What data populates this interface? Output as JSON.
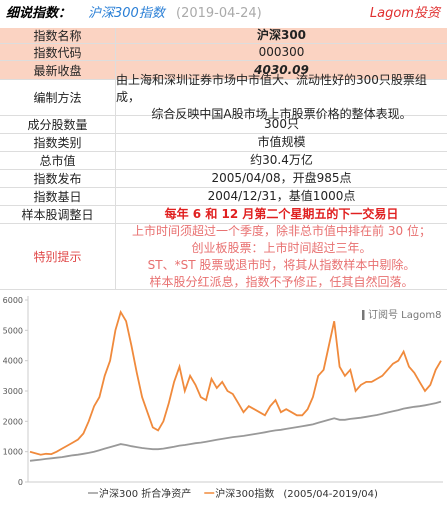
{
  "header": {
    "title": "细说指数：",
    "index": "沪深300指数",
    "date": "(2019-04-24)",
    "brand": "Lagom投资"
  },
  "table": {
    "rows": [
      [
        "指数名称",
        "沪深300"
      ],
      [
        "指数代码",
        "000300"
      ],
      [
        "最新收盘",
        "4030.09"
      ],
      [
        "编制方法",
        [
          "由上海和深圳证券市场中市值大、流动性好的300只股票组成，",
          "综合反映中国A股市场上市股票价格的整体表现。"
        ]
      ],
      [
        "成分股数量",
        "300只"
      ],
      [
        "指数类别",
        "市值规模"
      ],
      [
        "总市值",
        "约30.4万亿"
      ],
      [
        "指数发布",
        "2005/04/08，开盘985点"
      ],
      [
        "指数基日",
        "2004/12/31，基值1000点"
      ],
      [
        "样本股调整日",
        "每年 6 和 12 月第二个星期五的下一交易日"
      ],
      [
        "特别提示",
        [
          "上市时间须超过一个季度，除非总市值中排在前 30 位；",
          "创业板股票：上市时间超过三年。",
          "ST、*ST 股票或退市时，将其从指数样本中剔除。",
          "样本股分红派息，指数不予修正，任其自然回落。"
        ]
      ]
    ]
  },
  "chart_data": {
    "type": "line",
    "watermark": "订阅号 Lagom8",
    "note": "(2005/04-2019/04)",
    "ylim": [
      0,
      6000
    ],
    "yticks": [
      0,
      1000,
      2000,
      3000,
      4000,
      5000,
      6000
    ],
    "series": [
      {
        "name": "沪深300 折合净资产",
        "color": "#999999",
        "values": [
          700,
          720,
          740,
          760,
          780,
          800,
          820,
          850,
          880,
          900,
          930,
          960,
          1000,
          1050,
          1100,
          1150,
          1200,
          1250,
          1220,
          1180,
          1150,
          1120,
          1100,
          1080,
          1080,
          1100,
          1130,
          1160,
          1200,
          1220,
          1250,
          1280,
          1300,
          1330,
          1360,
          1390,
          1420,
          1450,
          1480,
          1500,
          1520,
          1550,
          1580,
          1610,
          1640,
          1670,
          1700,
          1720,
          1750,
          1780,
          1810,
          1840,
          1870,
          1900,
          1950,
          2000,
          2050,
          2100,
          2050,
          2050,
          2080,
          2100,
          2120,
          2150,
          2180,
          2210,
          2250,
          2290,
          2330,
          2370,
          2420,
          2450,
          2480,
          2500,
          2530,
          2560,
          2600,
          2650
        ]
      },
      {
        "name": "沪深300指数",
        "color": "#f08a3c",
        "values": [
          1000,
          950,
          900,
          930,
          920,
          1000,
          1100,
          1200,
          1300,
          1400,
          1600,
          2000,
          2500,
          2800,
          3500,
          4000,
          5000,
          5600,
          5300,
          4500,
          3600,
          2800,
          2300,
          1800,
          1700,
          2000,
          2600,
          3300,
          3800,
          3000,
          3500,
          3200,
          2800,
          2700,
          3400,
          3100,
          3300,
          3000,
          2900,
          2600,
          2300,
          2500,
          2400,
          2300,
          2200,
          2500,
          2700,
          2300,
          2400,
          2300,
          2200,
          2200,
          2400,
          2800,
          3500,
          3700,
          4500,
          5300,
          3800,
          3500,
          3700,
          3000,
          3200,
          3300,
          3300,
          3400,
          3500,
          3700,
          3900,
          4000,
          4300,
          3800,
          3600,
          3300,
          3000,
          3200,
          3700,
          4000
        ]
      }
    ]
  }
}
